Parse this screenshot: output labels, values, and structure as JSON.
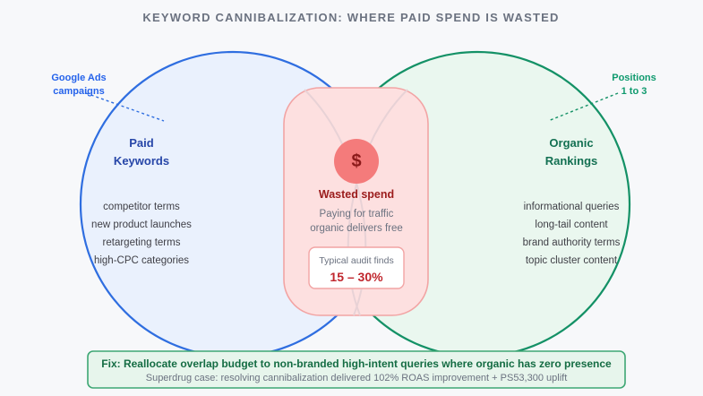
{
  "title": "KEYWORD CANNIBALIZATION: WHERE PAID SPEND IS WASTED",
  "callouts": {
    "left": [
      "Google Ads",
      "campaigns"
    ],
    "right": [
      "Positions",
      "1 to 3"
    ]
  },
  "paid": {
    "heading": [
      "Paid",
      "Keywords"
    ],
    "items": [
      "competitor terms",
      "new product launches",
      "retargeting terms",
      "high-CPC categories"
    ]
  },
  "organic": {
    "heading": [
      "Organic",
      "Rankings"
    ],
    "items": [
      "informational queries",
      "long-tail content",
      "brand authority terms",
      "topic cluster content"
    ]
  },
  "overlap": {
    "icon": "dollar-icon",
    "symbol": "$",
    "label": "Wasted spend",
    "description": [
      "Paying for traffic",
      "organic delivers free"
    ],
    "audit_label": "Typical audit finds",
    "audit_value": "15 – 30%"
  },
  "footer": {
    "fix": "Fix: Reallocate overlap budget to non-branded high-intent queries where organic has zero presence",
    "case": "Superdrug case: resolving cannibalization delivered 102% ROAS improvement + PS53,300 uplift"
  },
  "colors": {
    "paid": "#2f6ee0",
    "organic": "#149166",
    "overlap": "#f2a4a4",
    "dollar": "#f47b7b"
  }
}
